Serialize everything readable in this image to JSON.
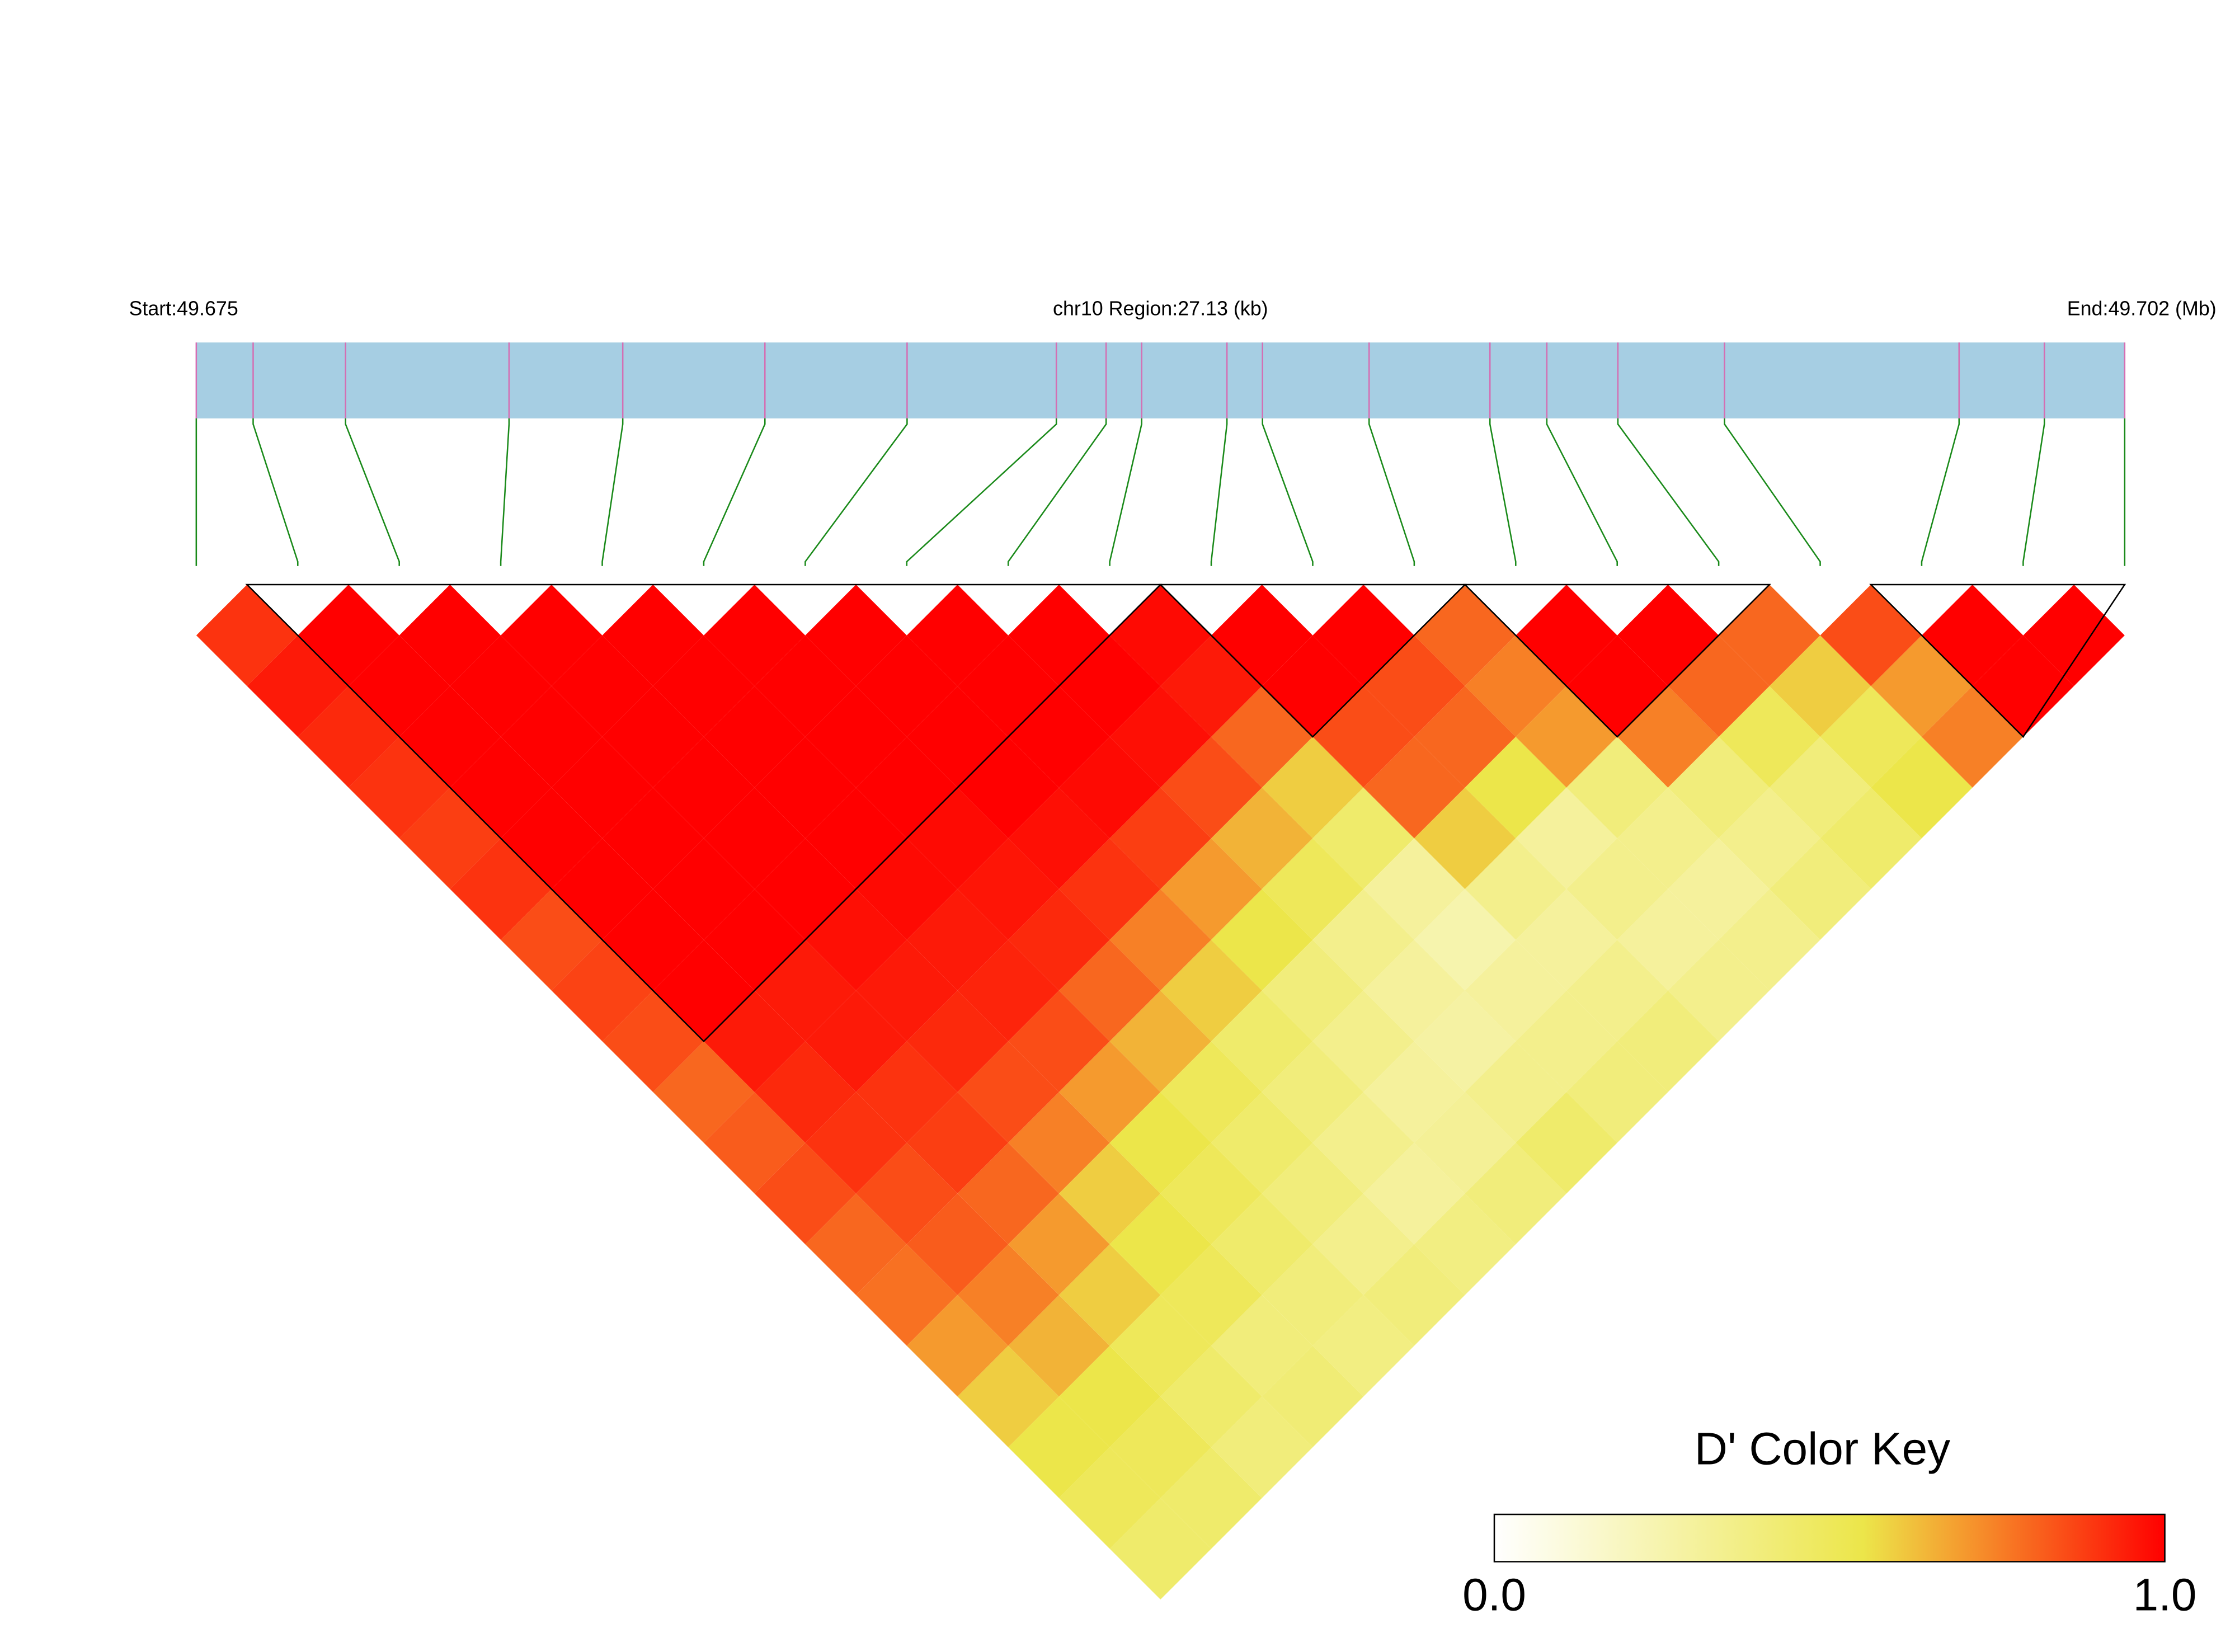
{
  "chart_data": {
    "type": "ld-heatmap",
    "start_label": "Start:49.675",
    "region_label": "chr10 Region:27.13 (kb)",
    "end_label": "End:49.702 (Mb)",
    "xlim": [
      0,
      27.13
    ],
    "snp_positions": [
      0,
      0.8,
      2.1,
      4.4,
      6.0,
      8.0,
      10.0,
      12.1,
      12.8,
      13.3,
      14.5,
      15.0,
      16.5,
      18.2,
      19.0,
      20.0,
      21.5,
      24.8,
      26.0,
      27.13
    ],
    "dprime": [
      [
        0.9,
        0.95,
        0.92,
        0.9,
        0.88,
        0.9,
        0.85,
        0.87,
        0.85,
        0.8,
        0.82,
        0.85,
        0.8,
        0.78,
        0.7,
        0.6,
        0.55,
        0.5,
        0.45
      ],
      [
        1,
        1,
        1,
        1,
        1,
        1,
        1,
        1,
        0.95,
        0.92,
        0.9,
        0.85,
        0.82,
        0.75,
        0.65,
        0.55,
        0.5,
        0.45
      ],
      [
        1,
        1,
        1,
        1,
        1,
        1,
        1,
        0.95,
        0.95,
        0.9,
        0.88,
        0.8,
        0.7,
        0.6,
        0.5,
        0.45,
        0.4
      ],
      [
        1,
        1,
        1,
        1,
        1,
        1,
        0.97,
        0.95,
        0.92,
        0.85,
        0.75,
        0.6,
        0.55,
        0.5,
        0.4,
        0.42
      ],
      [
        1,
        1,
        1,
        1,
        1,
        0.98,
        0.95,
        0.93,
        0.85,
        0.7,
        0.55,
        0.5,
        0.45,
        0.4,
        0.38
      ],
      [
        1,
        1,
        1,
        1,
        0.98,
        0.96,
        0.92,
        0.8,
        0.65,
        0.5,
        0.45,
        0.4,
        0.35,
        0.4
      ],
      [
        1,
        1,
        1,
        1,
        0.97,
        0.9,
        0.75,
        0.6,
        0.45,
        0.4,
        0.35,
        0.3,
        0.38
      ],
      [
        1,
        1,
        1,
        0.98,
        0.88,
        0.7,
        0.55,
        0.4,
        0.35,
        0.3,
        0.32,
        0.4
      ],
      [
        1,
        1,
        0.97,
        0.85,
        0.65,
        0.5,
        0.35,
        0.3,
        0.28,
        0.35,
        0.45
      ],
      [
        0.98,
        0.95,
        0.8,
        0.6,
        0.45,
        0.3,
        0.25,
        0.3,
        0.35,
        0.4
      ],
      [
        1,
        1,
        0.85,
        0.8,
        0.6,
        0.35,
        0.3,
        0.35,
        0.4
      ],
      [
        1,
        0.85,
        0.8,
        0.55,
        0.3,
        0.35,
        0.3,
        0.35
      ],
      [
        0.8,
        0.75,
        0.7,
        0.4,
        0.35,
        0.3,
        0.35
      ],
      [
        1,
        1,
        0.75,
        0.4,
        0.35,
        0.4
      ],
      [
        1,
        0.8,
        0.5,
        0.4,
        0.45
      ],
      [
        0.8,
        0.6,
        0.5,
        0.55
      ],
      [
        0.85,
        0.7,
        0.75
      ],
      [
        1,
        1
      ],
      [
        1
      ]
    ],
    "blocks": [
      [
        1,
        9
      ],
      [
        10,
        12
      ],
      [
        13,
        15
      ],
      [
        17,
        19
      ]
    ],
    "colorscale": [
      {
        "value": 0,
        "color": "#ffffff"
      },
      {
        "value": 0.55,
        "color": "#ece64a"
      },
      {
        "value": 0.7,
        "color": "#f59a2e"
      },
      {
        "value": 1,
        "color": "#ff0000"
      }
    ],
    "colorbar_title": "D' Color Key",
    "colorbar_ticks": [
      {
        "value": 0,
        "label": "0.0"
      },
      {
        "value": 1,
        "label": "1.0"
      }
    ]
  }
}
